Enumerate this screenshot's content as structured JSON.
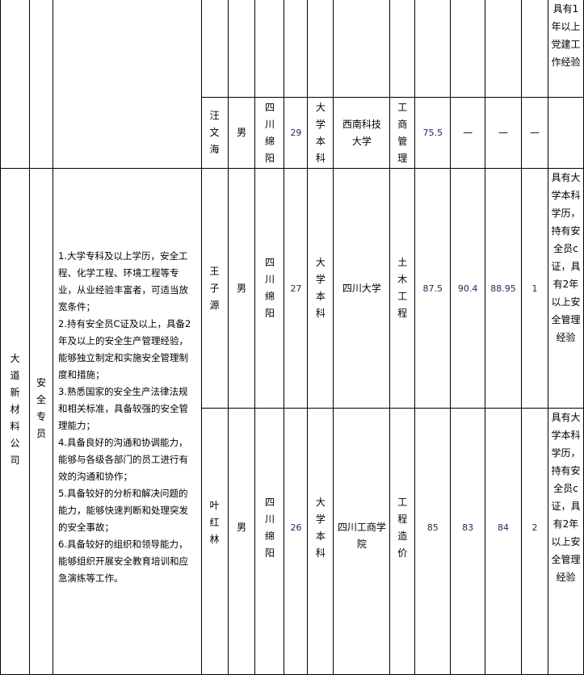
{
  "table": {
    "prev_row_note": "具有1年以上党建工作经验",
    "row_prev": {
      "name": "汪文海",
      "gender": "男",
      "origin": "四川绵阳",
      "age": "29",
      "education": "大学本科",
      "school": "西南科技大学",
      "major": "工商管理",
      "score1": "75.5",
      "score2": "—",
      "score3": "—",
      "rank": "—",
      "note": ""
    },
    "group": {
      "company": "大道新材料公司",
      "position": "安全专员",
      "requirements": [
        "1.大学专科及以上学历，安全工程、化学工程、环境工程等专业，从业经验丰富者，可适当放宽条件；",
        "2.持有安全员C证及以上，具备2年及以上的安全生产管理经验，能够独立制定和实施安全管理制度和措施；",
        "3.熟悉国家的安全生产法律法规和相关标准，具备较强的安全管理能力；",
        "4.具备良好的沟通和协调能力，能够与各级各部门的员工进行有效的沟通和协作；",
        "5.具备较好的分析和解决问题的能力，能够快速判断和处理突发的安全事故；",
        "6.具备较好的组织和领导能力，能够组织开展安全教育培训和应急演练等工作。"
      ],
      "rows": [
        {
          "name": "王子源",
          "gender": "男",
          "origin": "四川绵阳",
          "age": "27",
          "education": "大学本科",
          "school": "四川大学",
          "major": "土木工程",
          "score1": "87.5",
          "score2": "90.4",
          "score3": "88.95",
          "rank": "1",
          "note": "具有大学本科学历，持有安全员c证，具有2年以上安全管理经验"
        },
        {
          "name": "叶红林",
          "gender": "男",
          "origin": "四川绵阳",
          "age": "26",
          "education": "大学本科",
          "school": "四川工商学院",
          "major": "工程造价",
          "score1": "85",
          "score2": "83",
          "score3": "84",
          "rank": "2",
          "note": "具有大学本科学历，持有安全员c证，具有2年以上安全管理经验"
        }
      ]
    }
  }
}
